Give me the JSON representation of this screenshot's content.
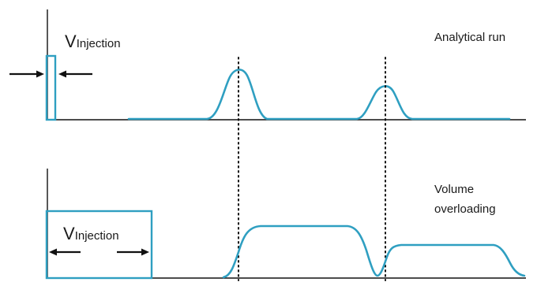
{
  "labels": {
    "top_panel": "Analytical run",
    "bottom_panel_line1": "Volume",
    "bottom_panel_line2": "overloading",
    "injection_main": "V",
    "injection_sub": "Injection"
  }
}
